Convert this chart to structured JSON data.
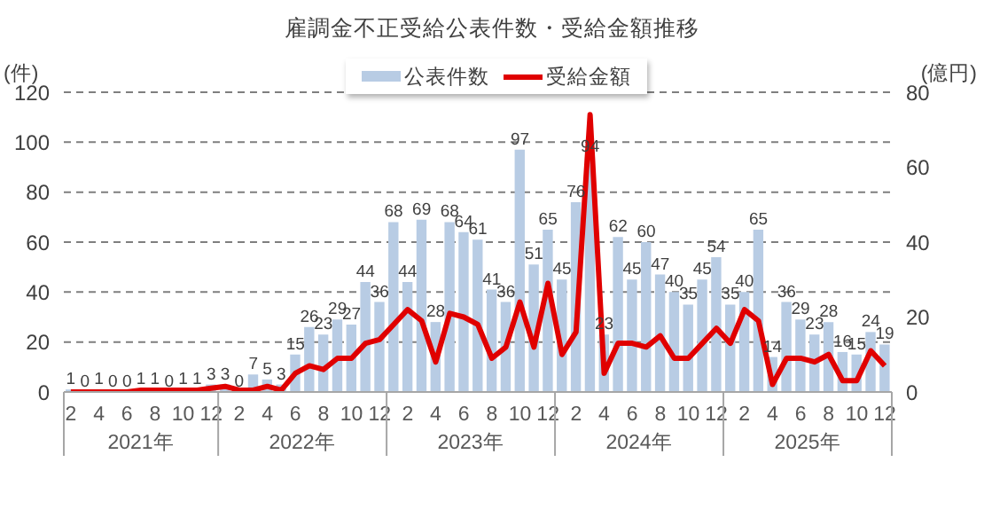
{
  "chart_data": {
    "type": "bar",
    "title": "雇調金不正受給公表件数・受給金額推移",
    "ylabel": "(件)",
    "y2label": "(億円)",
    "categories": [
      "2",
      null,
      "4",
      null,
      "6",
      null,
      "8",
      null,
      "10",
      null,
      "12",
      null,
      "2",
      null,
      "4",
      null,
      "6",
      null,
      "8",
      null,
      "10",
      null,
      "12",
      null,
      "2",
      null,
      "4",
      null,
      "6",
      null,
      "8",
      null,
      "10",
      null,
      "12",
      null,
      "2",
      null,
      "4",
      null,
      "6",
      null,
      "8",
      null,
      "10",
      null,
      "12",
      null,
      "2",
      null,
      "4",
      null,
      "6",
      null,
      "8",
      null,
      "10",
      null,
      "12"
    ],
    "series": [
      {
        "name": "公表件数",
        "color": "#b8cce4",
        "values": [
          1,
          0,
          1,
          0,
          0,
          1,
          1,
          0,
          1,
          1,
          3,
          3,
          0,
          7,
          5,
          3,
          15,
          26,
          23,
          29,
          27,
          44,
          36,
          68,
          44,
          69,
          28,
          68,
          64,
          61,
          41,
          36,
          97,
          51,
          65,
          45,
          76,
          94,
          23,
          62,
          45,
          60,
          47,
          40,
          35,
          45,
          54,
          35,
          40,
          65,
          14,
          36,
          29,
          23,
          28,
          16,
          15,
          24,
          19
        ],
        "value_labels": [
          "1",
          "0",
          "1",
          "0",
          "0",
          "1",
          "1",
          "0",
          "1",
          "1",
          "3",
          "3",
          "0",
          "7",
          "5",
          "3",
          "15",
          "26",
          "23",
          "29",
          "27",
          "44",
          "36",
          "68",
          "44",
          "69",
          "28",
          "68",
          "64",
          "61",
          "41",
          "36",
          "97",
          "51",
          "65",
          "45",
          "76",
          "94",
          "23",
          "62",
          "45",
          "60",
          "47",
          "40",
          "35",
          "45",
          "54",
          "35",
          "40",
          "65",
          "14",
          "36",
          "29",
          "23",
          "28",
          "16",
          "15",
          "24",
          "19"
        ]
      },
      {
        "name": "受給金額",
        "type": "line",
        "axis": "y2",
        "color": "#e00000",
        "values": [
          0,
          0,
          0,
          0,
          0,
          0.5,
          0.5,
          0.5,
          0.5,
          0.5,
          1,
          1.5,
          0.5,
          0.5,
          1.5,
          0.5,
          5,
          7,
          6,
          9,
          9,
          13,
          14,
          18,
          22,
          19,
          8,
          21,
          20,
          18,
          9,
          12,
          24,
          12,
          29,
          10,
          16,
          74,
          5,
          13,
          13,
          12,
          15,
          9,
          9,
          13,
          17,
          13,
          22,
          19,
          2,
          9,
          9,
          8,
          10,
          3,
          3,
          11,
          7
        ]
      }
    ],
    "ylim": [
      0,
      120
    ],
    "yticks": [
      0,
      20,
      40,
      60,
      80,
      100,
      120
    ],
    "y2lim": [
      0,
      80
    ],
    "y2ticks": [
      0,
      20,
      40,
      60,
      80
    ],
    "grid": "y",
    "legend": "top",
    "marker": "none",
    "line_style": "solid",
    "annotations": [
      "2021年",
      "2022年",
      "2023年",
      "2024年",
      "2025年"
    ]
  }
}
